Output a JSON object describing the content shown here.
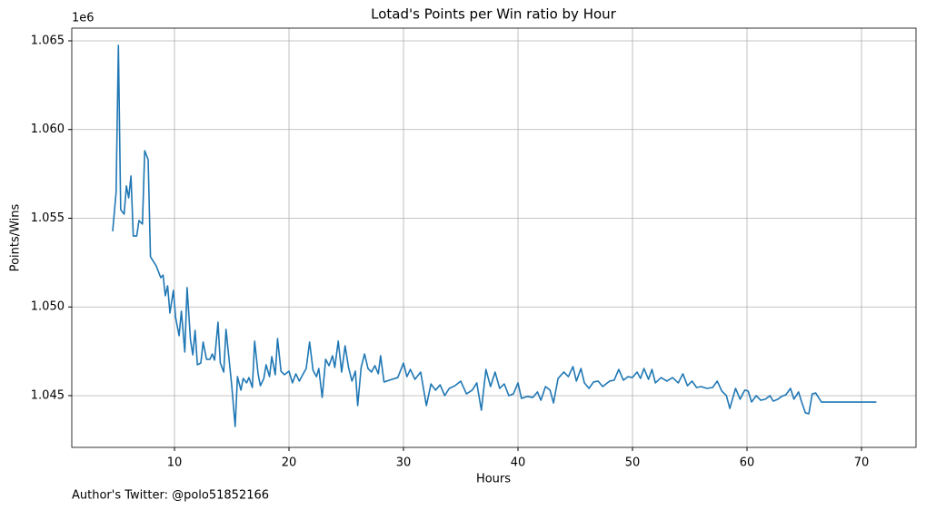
{
  "chart_data": {
    "type": "line",
    "title": "Lotad's Points per Win ratio by Hour",
    "x_label": "Hours",
    "y_label": "Points/Wins",
    "y_offset_label": "1e6",
    "footnote": "Author's Twitter: @polo51852166",
    "color": "#1f77b4",
    "grid": true,
    "xlim": [
      1.03,
      74.76
    ],
    "xticks": [
      10,
      20,
      30,
      40,
      50,
      60,
      70
    ],
    "ylim": [
      1042084,
      1065716
    ],
    "yticks": [
      {
        "value": 1045000,
        "label": "1.045"
      },
      {
        "value": 1050000,
        "label": "1.050"
      },
      {
        "value": 1055000,
        "label": "1.055"
      },
      {
        "value": 1060000,
        "label": "1.060"
      },
      {
        "value": 1065000,
        "label": "1.065"
      }
    ],
    "x": [
      4.6,
      4.9,
      5.1,
      5.3,
      5.6,
      5.8,
      6.0,
      6.2,
      6.4,
      6.7,
      6.9,
      7.2,
      7.4,
      7.7,
      7.9,
      8.4,
      8.8,
      9.0,
      9.2,
      9.4,
      9.6,
      9.9,
      10.1,
      10.4,
      10.6,
      10.9,
      11.1,
      11.4,
      11.6,
      11.8,
      12.0,
      12.3,
      12.5,
      12.8,
      13.1,
      13.3,
      13.5,
      13.8,
      14.0,
      14.3,
      14.5,
      14.8,
      15.0,
      15.3,
      15.5,
      15.8,
      16.0,
      16.3,
      16.5,
      16.8,
      17.0,
      17.3,
      17.5,
      17.8,
      18.0,
      18.3,
      18.5,
      18.8,
      19.0,
      19.3,
      19.6,
      20.0,
      20.3,
      20.6,
      20.9,
      21.2,
      21.5,
      21.8,
      22.1,
      22.4,
      22.6,
      22.9,
      23.2,
      23.5,
      23.8,
      24.0,
      24.3,
      24.6,
      24.9,
      25.2,
      25.5,
      25.8,
      26.0,
      26.3,
      26.6,
      26.9,
      27.2,
      27.5,
      27.8,
      28.0,
      28.3,
      29.0,
      29.5,
      30.0,
      30.3,
      30.6,
      31.0,
      31.5,
      32.0,
      32.4,
      32.8,
      33.2,
      33.6,
      34.0,
      34.5,
      35.0,
      35.5,
      36.0,
      36.4,
      36.8,
      37.2,
      37.6,
      38.0,
      38.4,
      38.8,
      39.2,
      39.6,
      40.0,
      40.3,
      40.8,
      41.3,
      41.7,
      42.0,
      42.4,
      42.8,
      43.1,
      43.5,
      44.0,
      44.4,
      44.8,
      45.1,
      45.5,
      45.8,
      46.2,
      46.6,
      47.0,
      47.4,
      48.0,
      48.4,
      48.8,
      49.2,
      49.6,
      50.0,
      50.4,
      50.7,
      51.0,
      51.4,
      51.7,
      52.0,
      52.5,
      53.0,
      53.5,
      54.0,
      54.4,
      54.8,
      55.2,
      55.6,
      56.0,
      56.5,
      57.0,
      57.4,
      57.8,
      58.2,
      58.5,
      59.0,
      59.4,
      59.8,
      60.1,
      60.4,
      60.8,
      61.2,
      61.6,
      62.0,
      62.3,
      62.7,
      63.0,
      63.4,
      63.8,
      64.1,
      64.5,
      64.8,
      65.1,
      65.4,
      65.7,
      66.0,
      66.5,
      71.3
    ],
    "values": [
      1054260,
      1056460,
      1064750,
      1055490,
      1055230,
      1056820,
      1056150,
      1057380,
      1054000,
      1054000,
      1054870,
      1054670,
      1058810,
      1058300,
      1052830,
      1052320,
      1051650,
      1051800,
      1050630,
      1051190,
      1049660,
      1050930,
      1049400,
      1048380,
      1049760,
      1047460,
      1051090,
      1048120,
      1047300,
      1048680,
      1046740,
      1046840,
      1048020,
      1047050,
      1047050,
      1047350,
      1047000,
      1049140,
      1046840,
      1046330,
      1048740,
      1046840,
      1045560,
      1043260,
      1046070,
      1045310,
      1045970,
      1045720,
      1046020,
      1045460,
      1048070,
      1046230,
      1045560,
      1045970,
      1046740,
      1046070,
      1047200,
      1046180,
      1048220,
      1046380,
      1046180,
      1046380,
      1045720,
      1046230,
      1045820,
      1046180,
      1046530,
      1048020,
      1046430,
      1046070,
      1046530,
      1044900,
      1047050,
      1046690,
      1047250,
      1046590,
      1048070,
      1046330,
      1047810,
      1046590,
      1045820,
      1046380,
      1044440,
      1046590,
      1047350,
      1046530,
      1046330,
      1046690,
      1046230,
      1047250,
      1045770,
      1045920,
      1046020,
      1046840,
      1046070,
      1046480,
      1045920,
      1046330,
      1044440,
      1045660,
      1045310,
      1045610,
      1045000,
      1045410,
      1045560,
      1045820,
      1045100,
      1045310,
      1045720,
      1044180,
      1046480,
      1045510,
      1046330,
      1045410,
      1045660,
      1045000,
      1045100,
      1045720,
      1044850,
      1044950,
      1044900,
      1045210,
      1044740,
      1045510,
      1045310,
      1044590,
      1045970,
      1046330,
      1046070,
      1046640,
      1045820,
      1046530,
      1045720,
      1045410,
      1045770,
      1045820,
      1045510,
      1045820,
      1045870,
      1046480,
      1045870,
      1046070,
      1046020,
      1046330,
      1045970,
      1046530,
      1045920,
      1046480,
      1045720,
      1046020,
      1045820,
      1046020,
      1045720,
      1046230,
      1045560,
      1045820,
      1045460,
      1045510,
      1045410,
      1045460,
      1045820,
      1045260,
      1045000,
      1044280,
      1045410,
      1044800,
      1045310,
      1045260,
      1044640,
      1045000,
      1044740,
      1044800,
      1045000,
      1044690,
      1044800,
      1044950,
      1045050,
      1045410,
      1044800,
      1045210,
      1044590,
      1044030,
      1043980,
      1045100,
      1045150,
      1044640,
      1044640
    ]
  }
}
